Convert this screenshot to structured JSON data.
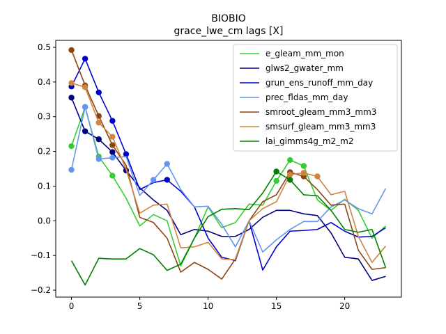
{
  "chart_data": {
    "type": "line",
    "title": "BIOBIO",
    "subtitle": "grace_lwe_cm lags [X]",
    "xlabel": "",
    "ylabel": "",
    "xlim": [
      -1.15,
      24.15
    ],
    "ylim": [
      -0.22,
      0.52
    ],
    "x_ticks": [
      0,
      5,
      10,
      15,
      20
    ],
    "y_ticks": [
      -0.2,
      -0.1,
      0.0,
      0.1,
      0.2,
      0.3,
      0.4,
      0.5
    ],
    "y_tick_labels": [
      "−0.2",
      "−0.1",
      "0.0",
      "0.1",
      "0.2",
      "0.3",
      "0.4",
      "0.5"
    ],
    "legend_position": "top-right",
    "grid": false,
    "x": [
      0,
      1,
      2,
      3,
      4,
      5,
      6,
      7,
      8,
      9,
      10,
      11,
      12,
      13,
      14,
      15,
      16,
      17,
      18,
      19,
      20,
      21,
      22,
      23
    ],
    "series": [
      {
        "name": "e_gleam_mm_mon",
        "color": "#32cd32",
        "values": [
          0.215,
          0.328,
          0.185,
          0.13,
          0.065,
          -0.015,
          0.018,
          0.0,
          -0.13,
          -0.05,
          0.04,
          -0.02,
          -0.005,
          0.048,
          0.045,
          0.115,
          0.175,
          0.158,
          0.06,
          0.03,
          0.062,
          0.03,
          -0.05,
          -0.015
        ],
        "markers": [
          0,
          1,
          2,
          3,
          15,
          16,
          17
        ]
      },
      {
        "name": "glws2_gwater_mm",
        "color": "#000080",
        "values": [
          0.355,
          0.258,
          0.235,
          0.198,
          0.145,
          0.095,
          0.06,
          0.03,
          -0.04,
          -0.025,
          -0.03,
          -0.045,
          -0.045,
          -0.025,
          0.01,
          0.03,
          0.03,
          0.02,
          0.015,
          -0.035,
          -0.105,
          -0.11,
          -0.172,
          -0.16
        ],
        "markers": [
          0,
          1,
          2,
          3,
          4
        ]
      },
      {
        "name": "grun_ens_runoff_mm_day",
        "color": "#0000cd",
        "values": [
          0.387,
          0.467,
          0.37,
          0.288,
          0.192,
          0.09,
          0.11,
          0.118,
          0.085,
          0.04,
          -0.05,
          -0.105,
          -0.115,
          0.0,
          -0.142,
          -0.075,
          -0.03,
          -0.028,
          -0.025,
          -0.005,
          -0.03,
          -0.047,
          -0.045,
          -0.02
        ],
        "markers": [
          0,
          1,
          2,
          3,
          4,
          7
        ]
      },
      {
        "name": "prec_fldas_mm_day",
        "color": "#6495ed",
        "values": [
          0.147,
          0.328,
          0.178,
          0.182,
          0.185,
          0.073,
          0.118,
          0.164,
          0.09,
          0.04,
          0.042,
          -0.01,
          -0.075,
          0.0,
          -0.09,
          -0.055,
          -0.025,
          -0.002,
          -0.002,
          0.04,
          0.06,
          0.035,
          0.02,
          0.093
        ],
        "markers": [
          0,
          1,
          2,
          3,
          6,
          7
        ]
      },
      {
        "name": "smroot_gleam_mm3_mm3",
        "color": "#8b4513",
        "values": [
          0.492,
          0.39,
          0.302,
          0.218,
          0.16,
          0.01,
          -0.005,
          -0.05,
          -0.148,
          -0.12,
          -0.14,
          -0.168,
          -0.11,
          0.0,
          0.055,
          0.075,
          0.14,
          0.128,
          0.09,
          0.045,
          0.048,
          -0.085,
          -0.14,
          -0.135
        ],
        "markers": [
          0,
          1,
          2,
          3,
          16,
          17
        ]
      },
      {
        "name": "smsurf_gleam_mm3_mm3",
        "color": "#cd853f",
        "values": [
          0.397,
          0.385,
          0.283,
          0.242,
          0.148,
          0.022,
          0.045,
          0.048,
          -0.078,
          -0.075,
          -0.062,
          -0.11,
          -0.112,
          0.0,
          0.035,
          0.055,
          0.133,
          0.138,
          0.128,
          0.075,
          0.085,
          -0.045,
          -0.12,
          -0.073
        ],
        "markers": [
          0,
          1,
          2,
          3,
          16,
          17,
          18
        ]
      },
      {
        "name": "lai_gimms4g_m2_m2",
        "color": "#008000",
        "values": [
          -0.115,
          -0.185,
          -0.108,
          -0.11,
          -0.11,
          -0.08,
          -0.098,
          -0.143,
          -0.125,
          -0.05,
          0.012,
          0.033,
          0.035,
          0.032,
          0.08,
          0.142,
          0.118,
          0.075,
          0.072,
          0.03,
          -0.025,
          -0.033,
          -0.025,
          -0.135
        ],
        "markers": [
          15,
          16
        ]
      }
    ]
  }
}
